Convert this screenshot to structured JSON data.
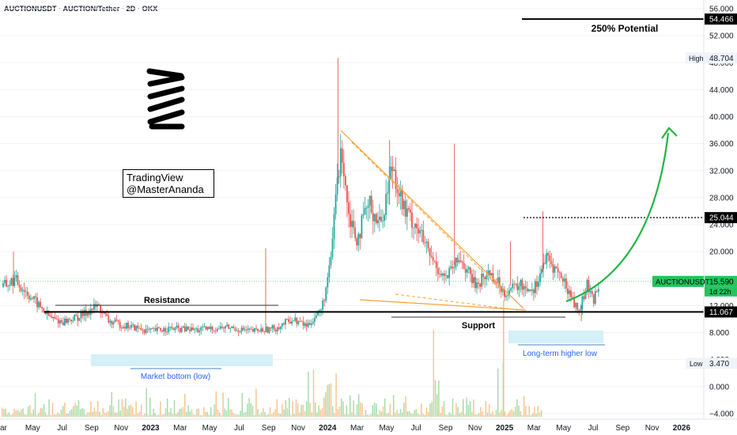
{
  "header": {
    "symbol_line": "AUCTIONUSDT · AUCTION/Tether · 2D · OKX"
  },
  "watermark": {
    "line1": "TradingView",
    "line2": "@MasterAnanda"
  },
  "colors": {
    "up": "#26a69a",
    "down": "#ef5350",
    "trend": "#f7a035",
    "arrow": "#22b543",
    "price_badge": "#22c55e",
    "zone": "#d5f0f7",
    "vol_up": "#a3d9a5",
    "vol_down": "#f6c28b"
  },
  "chart_data": {
    "type": "candlestick",
    "y_axis": {
      "ticks": [
        "56.000",
        "52.000",
        "48.000",
        "44.000",
        "40.000",
        "36.000",
        "32.000",
        "28.000",
        "24.000",
        "20.000",
        "16.000",
        "12.000",
        "8.000",
        "4.000",
        "0.000",
        "−4.000"
      ],
      "tick_values": [
        56,
        52,
        48,
        44,
        40,
        36,
        32,
        28,
        24,
        20,
        16,
        12,
        8,
        4,
        0,
        -4
      ]
    },
    "x_axis": {
      "ticks": [
        "ar",
        "May",
        "Jul",
        "Sep",
        "Nov",
        "2023",
        "Mar",
        "May",
        "Jul",
        "Sep",
        "Nov",
        "2024",
        "Mar",
        "May",
        "Jul",
        "Sep",
        "Nov",
        "2025",
        "Mar",
        "May",
        "Jul",
        "Sep",
        "Nov",
        "2026"
      ],
      "bold_ticks": [
        "2023",
        "2024",
        "2025",
        "2026"
      ]
    },
    "price_series": [
      {
        "t": 0.0,
        "p": 14.8
      },
      {
        "t": 0.4,
        "p": 15.8
      },
      {
        "t": 1.0,
        "p": 13.0
      },
      {
        "t": 1.6,
        "p": 10.2
      },
      {
        "t": 2.0,
        "p": 9.6
      },
      {
        "t": 2.6,
        "p": 10.4
      },
      {
        "t": 3.2,
        "p": 12.0
      },
      {
        "t": 3.6,
        "p": 9.6
      },
      {
        "t": 4.4,
        "p": 8.8
      },
      {
        "t": 5.0,
        "p": 8.2
      },
      {
        "t": 5.6,
        "p": 8.6
      },
      {
        "t": 6.6,
        "p": 8.4
      },
      {
        "t": 7.6,
        "p": 8.8
      },
      {
        "t": 8.4,
        "p": 8.2
      },
      {
        "t": 9.2,
        "p": 8.6
      },
      {
        "t": 9.8,
        "p": 10.0
      },
      {
        "t": 10.3,
        "p": 9.0
      },
      {
        "t": 10.8,
        "p": 11.5
      },
      {
        "t": 11.1,
        "p": 18.0
      },
      {
        "t": 11.3,
        "p": 30.0
      },
      {
        "t": 11.5,
        "p": 35.0
      },
      {
        "t": 11.7,
        "p": 26.0
      },
      {
        "t": 12.0,
        "p": 22.0
      },
      {
        "t": 12.4,
        "p": 27.0
      },
      {
        "t": 12.8,
        "p": 24.0
      },
      {
        "t": 13.2,
        "p": 33.0
      },
      {
        "t": 13.6,
        "p": 26.0
      },
      {
        "t": 14.0,
        "p": 24.0
      },
      {
        "t": 14.5,
        "p": 19.0
      },
      {
        "t": 15.0,
        "p": 16.0
      },
      {
        "t": 15.5,
        "p": 19.0
      },
      {
        "t": 16.0,
        "p": 15.0
      },
      {
        "t": 16.5,
        "p": 17.0
      },
      {
        "t": 17.0,
        "p": 14.0
      },
      {
        "t": 17.5,
        "p": 15.0
      },
      {
        "t": 18.0,
        "p": 14.5
      },
      {
        "t": 18.4,
        "p": 19.0
      },
      {
        "t": 18.8,
        "p": 17.0
      },
      {
        "t": 19.2,
        "p": 14.0
      },
      {
        "t": 19.5,
        "p": 11.0
      },
      {
        "t": 19.8,
        "p": 15.0
      },
      {
        "t": 20.0,
        "p": 12.5
      },
      {
        "t": 20.2,
        "p": 15.6
      }
    ],
    "high": {
      "label": "High",
      "value": "48.704",
      "numeric": 48.704
    },
    "low": {
      "label": "Low",
      "value": "3.470",
      "numeric": 3.47
    },
    "current": {
      "symbol": "AUCTIONUSDT",
      "price": "15.590",
      "numeric": 15.59,
      "countdown": "1d 22h"
    },
    "levels": [
      {
        "name": "target",
        "value": "54.466",
        "numeric": 54.466
      },
      {
        "name": "mid-target",
        "value": "25.044",
        "numeric": 25.044
      },
      {
        "name": "support-resistance",
        "value": "11.067",
        "numeric": 11.067
      }
    ],
    "annotations": {
      "potential": "250% Potential",
      "resistance": "Resistance",
      "support": "Support",
      "market_bottom": "Market bottom (low)",
      "higher_low": "Long-term higher low"
    }
  }
}
